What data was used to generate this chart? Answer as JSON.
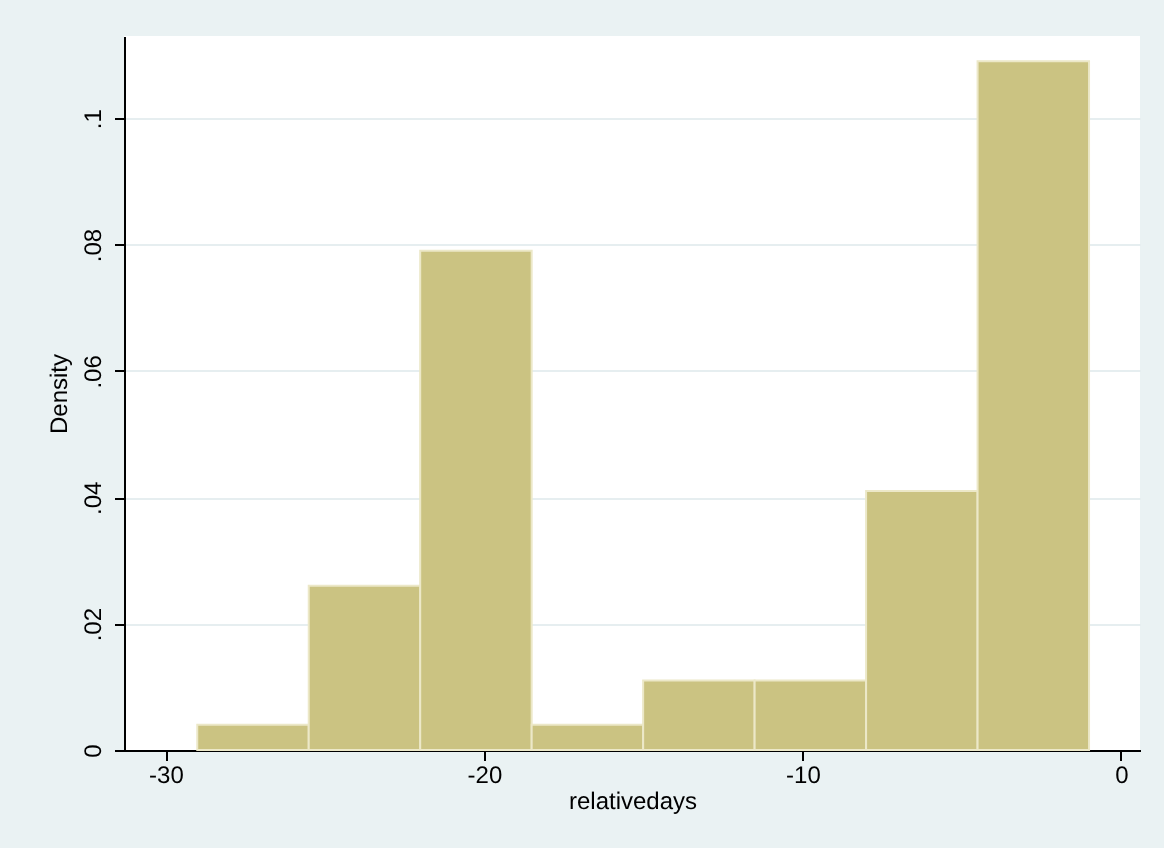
{
  "chart_data": {
    "type": "histogram",
    "xlabel": "relativedays",
    "ylabel": "Density",
    "bins": [
      -29,
      -25.5,
      -22,
      -18.5,
      -15,
      -11.5,
      -8,
      -4.5,
      -1
    ],
    "values": [
      0.004,
      0.026,
      0.079,
      0.004,
      0.011,
      0.011,
      0.041,
      0.109
    ],
    "color": "#cbc382",
    "xlim": [
      -31.3,
      0.6
    ],
    "xticks": [
      -30,
      -20,
      -10,
      0
    ],
    "ylim": [
      0,
      0.113
    ],
    "yticks": [
      0,
      {
        "value": 0.02,
        "label": ".02"
      },
      {
        "value": 0.04,
        "label": ".04"
      },
      {
        "value": 0.06,
        "label": ".06"
      },
      {
        "value": 0.08,
        "label": ".08"
      },
      {
        "value": 0.1,
        "label": ".1"
      }
    ],
    "grid": "y"
  }
}
